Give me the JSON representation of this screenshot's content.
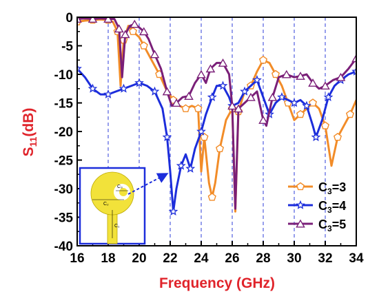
{
  "chart_data": {
    "type": "line",
    "title": "",
    "xlabel": "Frequency (GHz)",
    "ylabel_main": "S",
    "ylabel_sub": "11",
    "ylabel_unit": "(dB)",
    "xlim": [
      16,
      34
    ],
    "ylim": [
      -40,
      0
    ],
    "xticks": [
      16,
      18,
      20,
      22,
      24,
      26,
      28,
      30,
      32,
      34
    ],
    "yticks": [
      0,
      -5,
      -10,
      -15,
      -20,
      -25,
      -30,
      -35,
      -40
    ],
    "xtick_labels": [
      "16",
      "18",
      "20",
      "22",
      "24",
      "26",
      "28",
      "30",
      "32",
      "34"
    ],
    "ytick_labels": [
      "0",
      "-5",
      "-10",
      "-15",
      "-20",
      "-25",
      "-30",
      "-35",
      "-40"
    ],
    "grid": "vertical dashed lines at x ticks",
    "legend_position": "bottom-right",
    "inset": {
      "labels": [
        "C₃",
        "C₂",
        "C₁"
      ],
      "pointer_target": {
        "x": 22,
        "y": -27
      }
    },
    "series": [
      {
        "name_main": "C",
        "name_sub": "3",
        "name_tail": "=3",
        "color": "#f28c28",
        "marker": "pentagon",
        "points": [
          [
            16,
            -0.8
          ],
          [
            16.5,
            -0.6
          ],
          [
            17,
            -0.5
          ],
          [
            17.5,
            -0.4
          ],
          [
            18,
            -0.5
          ],
          [
            18.3,
            -0.8
          ],
          [
            18.6,
            -2.5
          ],
          [
            18.8,
            -12
          ],
          [
            19,
            -4
          ],
          [
            19.3,
            -1.5
          ],
          [
            19.6,
            -2.5
          ],
          [
            20,
            -3.5
          ],
          [
            20.3,
            -5
          ],
          [
            20.8,
            -7.5
          ],
          [
            21.3,
            -10
          ],
          [
            21.8,
            -13
          ],
          [
            22.2,
            -14.5
          ],
          [
            22.6,
            -15.5
          ],
          [
            23,
            -16
          ],
          [
            23.4,
            -15.5
          ],
          [
            23.8,
            -16
          ],
          [
            24,
            -27
          ],
          [
            24.2,
            -21
          ],
          [
            24.5,
            -29
          ],
          [
            24.7,
            -31.5
          ],
          [
            24.9,
            -29
          ],
          [
            25.2,
            -23
          ],
          [
            25.6,
            -18
          ],
          [
            26,
            -16
          ],
          [
            26.2,
            -34
          ],
          [
            26.4,
            -16.5
          ],
          [
            26.8,
            -13
          ],
          [
            27.2,
            -12
          ],
          [
            27.6,
            -9.5
          ],
          [
            28,
            -7.5
          ],
          [
            28.4,
            -8
          ],
          [
            28.8,
            -10
          ],
          [
            29.2,
            -12
          ],
          [
            29.6,
            -15
          ],
          [
            30,
            -18
          ],
          [
            30.4,
            -17
          ],
          [
            30.8,
            -16
          ],
          [
            31.2,
            -15
          ],
          [
            31.6,
            -16
          ],
          [
            32,
            -19
          ],
          [
            32.4,
            -26
          ],
          [
            32.8,
            -21
          ],
          [
            33.2,
            -19
          ],
          [
            33.6,
            -17
          ],
          [
            34,
            -14.5
          ]
        ]
      },
      {
        "name_main": "C",
        "name_sub": "3",
        "name_tail": "=4",
        "color": "#1c2ddb",
        "marker": "star",
        "points": [
          [
            16,
            -9
          ],
          [
            16.5,
            -10.5
          ],
          [
            17,
            -12.5
          ],
          [
            17.5,
            -13.5
          ],
          [
            18,
            -13.5
          ],
          [
            18.5,
            -13
          ],
          [
            19,
            -12.5
          ],
          [
            19.5,
            -12
          ],
          [
            20,
            -11.5
          ],
          [
            20.5,
            -12
          ],
          [
            21,
            -13
          ],
          [
            21.5,
            -16
          ],
          [
            21.8,
            -21
          ],
          [
            22,
            -27
          ],
          [
            22.2,
            -34
          ],
          [
            22.4,
            -30
          ],
          [
            22.7,
            -26
          ],
          [
            23,
            -24
          ],
          [
            23.3,
            -26.5
          ],
          [
            23.6,
            -23
          ],
          [
            24,
            -20
          ],
          [
            24.3,
            -17
          ],
          [
            24.7,
            -14
          ],
          [
            25,
            -12
          ],
          [
            25.4,
            -12
          ],
          [
            25.8,
            -14
          ],
          [
            26,
            -15.5
          ],
          [
            26.4,
            -15
          ],
          [
            26.8,
            -13
          ],
          [
            27.2,
            -12
          ],
          [
            27.6,
            -11
          ],
          [
            28,
            -14
          ],
          [
            28.4,
            -17
          ],
          [
            28.8,
            -15
          ],
          [
            29.2,
            -14
          ],
          [
            29.6,
            -14.5
          ],
          [
            30,
            -15
          ],
          [
            30.4,
            -14.5
          ],
          [
            30.8,
            -15.5
          ],
          [
            31.2,
            -19
          ],
          [
            31.4,
            -21
          ],
          [
            31.8,
            -18
          ],
          [
            32.2,
            -14
          ],
          [
            32.6,
            -12
          ],
          [
            33,
            -11
          ],
          [
            33.5,
            -10
          ],
          [
            34,
            -9.5
          ]
        ]
      },
      {
        "name_main": "C",
        "name_sub": "3",
        "name_tail": "=5",
        "color": "#7a1f78",
        "marker": "triangle",
        "points": [
          [
            16,
            -0.3
          ],
          [
            16.5,
            -0.2
          ],
          [
            17,
            -0.3
          ],
          [
            17.5,
            -0.2
          ],
          [
            18,
            -0.3
          ],
          [
            18.4,
            -0.3
          ],
          [
            18.7,
            -2
          ],
          [
            18.9,
            -10.5
          ],
          [
            19.1,
            -3
          ],
          [
            19.4,
            -1.5
          ],
          [
            19.7,
            -1.2
          ],
          [
            20,
            -1.8
          ],
          [
            20.3,
            -2.5
          ],
          [
            20.6,
            -3.8
          ],
          [
            21,
            -6.5
          ],
          [
            21.4,
            -9
          ],
          [
            21.8,
            -13
          ],
          [
            22.1,
            -15.5
          ],
          [
            22.4,
            -15
          ],
          [
            22.8,
            -14
          ],
          [
            23.2,
            -13.8
          ],
          [
            23.6,
            -11.5
          ],
          [
            24,
            -10
          ],
          [
            24.3,
            -11.5
          ],
          [
            24.6,
            -9
          ],
          [
            25,
            -8
          ],
          [
            25.4,
            -8
          ],
          [
            25.8,
            -10
          ],
          [
            26,
            -15.5
          ],
          [
            26.2,
            -33.5
          ],
          [
            26.4,
            -16
          ],
          [
            26.8,
            -15
          ],
          [
            27.2,
            -14
          ],
          [
            27.6,
            -13
          ],
          [
            28,
            -18
          ],
          [
            28.2,
            -19
          ],
          [
            28.6,
            -14
          ],
          [
            29,
            -10.5
          ],
          [
            29.5,
            -10
          ],
          [
            30,
            -10.5
          ],
          [
            30.4,
            -10.3
          ],
          [
            30.8,
            -10
          ],
          [
            31.2,
            -11.5
          ],
          [
            31.6,
            -12.5
          ],
          [
            32,
            -12
          ],
          [
            32.5,
            -11
          ],
          [
            33,
            -10.5
          ],
          [
            33.5,
            -9
          ],
          [
            34,
            -7.2
          ]
        ]
      }
    ]
  }
}
